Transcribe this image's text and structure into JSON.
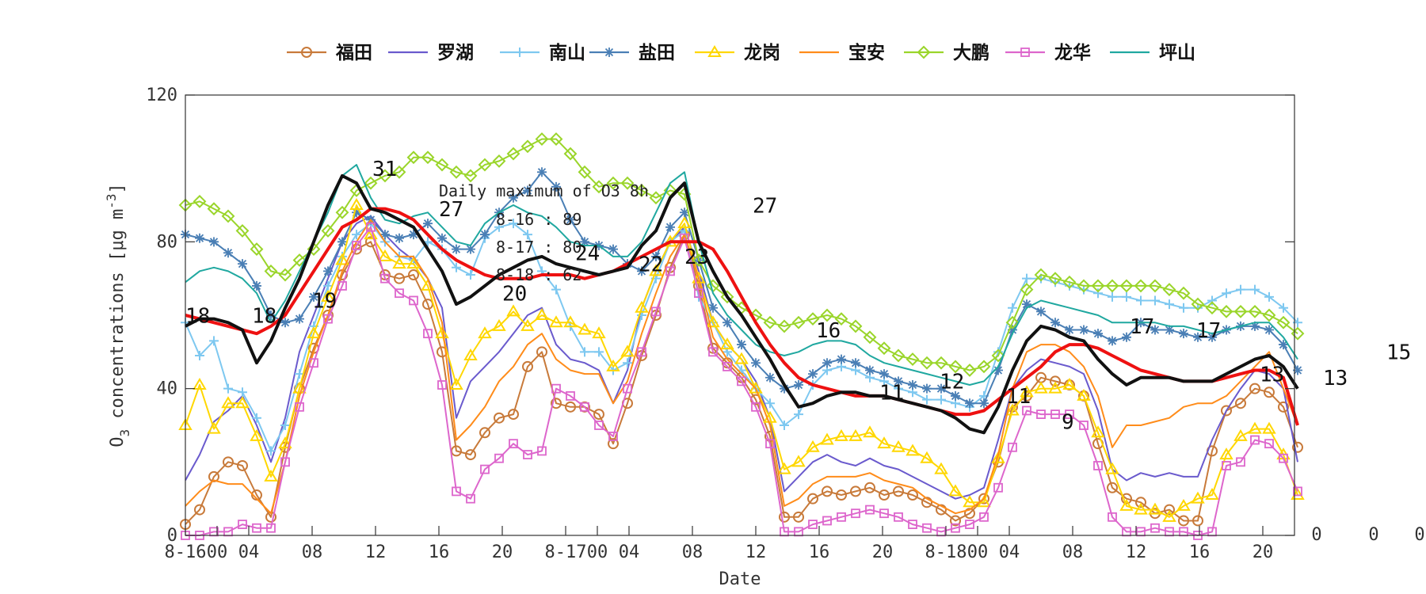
{
  "chart_data": {
    "type": "line",
    "title": "",
    "xlabel": "Date",
    "ylabel": "O3 concentrations [µg m-3]",
    "ylabel_parts": {
      "base": "O",
      "sub": "3",
      "middle": " concentrations [",
      "mu": "μ",
      "unit": "g m",
      "sup": "-3",
      "close": "]"
    },
    "ylim": [
      0,
      120
    ],
    "xlim": [
      0,
      70
    ],
    "yticks": [
      0,
      40,
      80,
      120
    ],
    "xticks": [
      {
        "x": 0,
        "label": "8-16"
      },
      {
        "x": 2,
        "label": "00"
      },
      {
        "x": 4,
        "label": "04"
      },
      {
        "x": 8,
        "label": "08"
      },
      {
        "x": 12,
        "label": "12"
      },
      {
        "x": 16,
        "label": "16"
      },
      {
        "x": 20,
        "label": "20"
      },
      {
        "x": 24,
        "label": "8-17"
      },
      {
        "x": 26,
        "label": "00"
      },
      {
        "x": 28,
        "label": "04"
      },
      {
        "x": 32,
        "label": "08"
      },
      {
        "x": 36,
        "label": "12"
      },
      {
        "x": 40,
        "label": "16"
      },
      {
        "x": 44,
        "label": "20"
      },
      {
        "x": 48,
        "label": "8-18"
      },
      {
        "x": 50,
        "label": "00"
      },
      {
        "x": 52,
        "label": "04"
      },
      {
        "x": 56,
        "label": "08"
      },
      {
        "x": 60,
        "label": "12"
      },
      {
        "x": 64,
        "label": "16"
      },
      {
        "x": 68,
        "label": "20"
      }
    ],
    "right_labels": [
      "0",
      "0",
      "0"
    ],
    "legend": [
      "福田",
      "罗湖",
      "南山",
      "盐田",
      "龙岗",
      "宝安",
      "大鹏",
      "龙华",
      "坪山"
    ],
    "series": [
      {
        "name": "福田",
        "color": "#c87a3a",
        "marker": "circle",
        "values": [
          3,
          7,
          16,
          20,
          19,
          11,
          5,
          24,
          40,
          51,
          60,
          71,
          78,
          80,
          71,
          70,
          71,
          63,
          50,
          23,
          22,
          28,
          32,
          33,
          46,
          50,
          36,
          35,
          35,
          33,
          25,
          36,
          49,
          60,
          73,
          82,
          68,
          51,
          47,
          43,
          37,
          27,
          5,
          5,
          10,
          12,
          11,
          12,
          13,
          11,
          12,
          11,
          9,
          7,
          4,
          6,
          10,
          20,
          35,
          38,
          43,
          42,
          41,
          38,
          25,
          13,
          10,
          9,
          6,
          7,
          4,
          4,
          23,
          34,
          36,
          40,
          39,
          35,
          24
        ]
      },
      {
        "name": "罗湖",
        "color": "#6a5acd",
        "marker": "none",
        "values": [
          15,
          22,
          31,
          34,
          38,
          30,
          20,
          32,
          50,
          60,
          70,
          80,
          85,
          87,
          82,
          78,
          75,
          70,
          62,
          32,
          42,
          46,
          50,
          55,
          60,
          62,
          52,
          48,
          47,
          45,
          36,
          45,
          62,
          72,
          80,
          84,
          72,
          58,
          52,
          48,
          42,
          32,
          12,
          16,
          20,
          22,
          20,
          19,
          21,
          19,
          18,
          16,
          14,
          12,
          10,
          11,
          13,
          26,
          40,
          45,
          48,
          47,
          46,
          44,
          34,
          18,
          15,
          17,
          16,
          17,
          16,
          16,
          26,
          34,
          40,
          45,
          44,
          40,
          20
        ]
      },
      {
        "name": "南山",
        "color": "#7ec8f0",
        "marker": "plus",
        "values": [
          58,
          49,
          53,
          40,
          39,
          32,
          23,
          30,
          44,
          57,
          68,
          76,
          82,
          85,
          80,
          76,
          75,
          80,
          78,
          73,
          71,
          81,
          84,
          85,
          82,
          72,
          67,
          57,
          50,
          50,
          45,
          47,
          60,
          70,
          80,
          83,
          65,
          58,
          50,
          45,
          40,
          36,
          30,
          33,
          41,
          45,
          46,
          45,
          43,
          42,
          40,
          39,
          37,
          37,
          36,
          35,
          38,
          50,
          62,
          70,
          70,
          69,
          68,
          67,
          66,
          65,
          65,
          64,
          64,
          63,
          62,
          62,
          64,
          66,
          67,
          67,
          65,
          62,
          58
        ]
      },
      {
        "name": "盐田",
        "color": "#4a7fb5",
        "marker": "star",
        "values": [
          82,
          81,
          80,
          77,
          74,
          68,
          60,
          58,
          59,
          65,
          72,
          80,
          88,
          86,
          82,
          81,
          82,
          85,
          81,
          78,
          78,
          82,
          88,
          92,
          94,
          99,
          95,
          86,
          80,
          79,
          78,
          74,
          72,
          76,
          84,
          88,
          75,
          62,
          58,
          52,
          47,
          43,
          40,
          41,
          44,
          47,
          48,
          47,
          45,
          44,
          42,
          41,
          40,
          40,
          38,
          36,
          36,
          45,
          56,
          63,
          61,
          58,
          56,
          56,
          55,
          53,
          54,
          58,
          56,
          56,
          55,
          54,
          54,
          56,
          57,
          57,
          56,
          52,
          45
        ]
      },
      {
        "name": "龙岗",
        "color": "#ffd700",
        "marker": "triangle",
        "values": [
          30,
          41,
          29,
          36,
          36,
          27,
          16,
          25,
          40,
          55,
          65,
          75,
          90,
          82,
          76,
          74,
          74,
          68,
          55,
          41,
          49,
          55,
          57,
          61,
          57,
          60,
          58,
          58,
          56,
          55,
          46,
          50,
          62,
          72,
          80,
          85,
          70,
          58,
          52,
          48,
          40,
          32,
          18,
          20,
          24,
          26,
          27,
          27,
          28,
          25,
          24,
          23,
          21,
          18,
          12,
          9,
          9,
          21,
          34,
          39,
          40,
          40,
          41,
          38,
          28,
          18,
          8,
          7,
          7,
          5,
          8,
          10,
          11,
          22,
          27,
          29,
          29,
          22,
          11
        ]
      },
      {
        "name": "宝安",
        "color": "#ff8c1a",
        "marker": "none",
        "values": [
          8,
          12,
          15,
          14,
          14,
          10,
          6,
          20,
          38,
          50,
          60,
          72,
          80,
          86,
          80,
          76,
          76,
          70,
          58,
          26,
          30,
          35,
          42,
          46,
          52,
          55,
          48,
          45,
          44,
          44,
          36,
          42,
          55,
          66,
          76,
          82,
          70,
          54,
          48,
          44,
          40,
          30,
          8,
          10,
          14,
          16,
          16,
          16,
          17,
          15,
          14,
          13,
          10,
          8,
          6,
          7,
          10,
          22,
          40,
          50,
          52,
          52,
          50,
          46,
          38,
          24,
          30,
          30,
          31,
          32,
          35,
          36,
          36,
          38,
          42,
          46,
          50,
          40,
          30
        ]
      },
      {
        "name": "大鹏",
        "color": "#9ad52a",
        "marker": "diamond",
        "values": [
          90,
          91,
          89,
          87,
          83,
          78,
          72,
          71,
          75,
          78,
          83,
          88,
          94,
          96,
          98,
          99,
          103,
          103,
          101,
          99,
          98,
          101,
          102,
          104,
          106,
          108,
          108,
          104,
          99,
          95,
          96,
          96,
          94,
          92,
          94,
          93,
          75,
          68,
          65,
          62,
          60,
          58,
          57,
          58,
          59,
          60,
          59,
          57,
          54,
          51,
          49,
          48,
          47,
          47,
          46,
          45,
          46,
          49,
          58,
          67,
          71,
          70,
          69,
          68,
          68,
          68,
          68,
          68,
          68,
          67,
          66,
          63,
          62,
          61,
          61,
          61,
          60,
          58,
          55
        ]
      },
      {
        "name": "龙华",
        "color": "#dd66cc",
        "marker": "square",
        "values": [
          0,
          0,
          1,
          1,
          3,
          2,
          2,
          20,
          35,
          47,
          59,
          68,
          79,
          84,
          70,
          66,
          64,
          55,
          41,
          12,
          10,
          18,
          21,
          25,
          22,
          23,
          40,
          38,
          35,
          30,
          27,
          40,
          50,
          61,
          72,
          81,
          66,
          50,
          46,
          42,
          35,
          25,
          1,
          1,
          3,
          4,
          5,
          6,
          7,
          6,
          5,
          3,
          2,
          1,
          2,
          3,
          5,
          13,
          24,
          34,
          33,
          33,
          33,
          30,
          19,
          5,
          1,
          1,
          2,
          1,
          1,
          0,
          1,
          19,
          20,
          26,
          25,
          21,
          12
        ]
      },
      {
        "name": "坪山",
        "color": "#20a8a0",
        "marker": "none",
        "values": [
          69,
          72,
          73,
          72,
          70,
          66,
          58,
          64,
          72,
          80,
          88,
          98,
          101,
          92,
          86,
          85,
          87,
          88,
          84,
          80,
          79,
          85,
          88,
          90,
          88,
          87,
          84,
          80,
          79,
          79,
          76,
          76,
          80,
          88,
          96,
          99,
          80,
          66,
          60,
          56,
          52,
          50,
          49,
          50,
          52,
          53,
          53,
          52,
          49,
          47,
          46,
          45,
          44,
          43,
          42,
          41,
          42,
          46,
          55,
          62,
          64,
          63,
          62,
          61,
          60,
          58,
          58,
          58,
          58,
          57,
          57,
          56,
          55,
          56,
          57,
          58,
          58,
          54,
          48
        ]
      }
    ],
    "mean_line": {
      "name": "mean",
      "color": "#111111",
      "values": [
        57,
        59,
        59,
        58,
        56,
        47,
        53,
        62,
        70,
        80,
        90,
        98,
        96,
        89,
        88,
        86,
        84,
        78,
        72,
        63,
        65,
        68,
        71,
        73,
        75,
        76,
        74,
        73,
        72,
        71,
        72,
        73,
        79,
        83,
        92,
        96,
        80,
        72,
        65,
        60,
        54,
        48,
        41,
        35,
        36,
        38,
        39,
        39,
        38,
        38,
        37,
        36,
        35,
        34,
        32,
        29,
        28,
        35,
        45,
        53,
        57,
        56,
        54,
        53,
        48,
        44,
        41,
        43,
        43,
        43,
        42,
        42,
        42,
        44,
        46,
        48,
        49,
        46,
        40
      ]
    },
    "smooth_line": {
      "name": "smooth",
      "color": "#ee1111",
      "values": [
        60,
        59,
        58,
        57,
        56,
        55,
        57,
        60,
        66,
        72,
        78,
        84,
        86,
        89,
        89,
        88,
        86,
        82,
        78,
        75,
        73,
        71,
        70,
        70,
        70,
        71,
        71,
        71,
        70,
        71,
        72,
        74,
        76,
        78,
        80,
        80,
        80,
        78,
        72,
        65,
        58,
        52,
        47,
        43,
        41,
        40,
        39,
        38,
        38,
        38,
        37,
        36,
        35,
        34,
        33,
        33,
        34,
        37,
        40,
        43,
        46,
        50,
        52,
        52,
        51,
        49,
        47,
        45,
        44,
        43,
        42,
        42,
        42,
        43,
        44,
        45,
        45,
        43,
        30
      ]
    },
    "daily_labels": [
      {
        "x": 0,
        "y": 58,
        "text": "18"
      },
      {
        "x": 4.2,
        "y": 58,
        "text": "18"
      },
      {
        "x": 8,
        "y": 62,
        "text": "19"
      },
      {
        "x": 11.8,
        "y": 98,
        "text": "31"
      },
      {
        "x": 16,
        "y": 87,
        "text": "27"
      },
      {
        "x": 20,
        "y": 64,
        "text": "20"
      },
      {
        "x": 24.6,
        "y": 75,
        "text": "24"
      },
      {
        "x": 28.6,
        "y": 72,
        "text": "22"
      },
      {
        "x": 31.5,
        "y": 74,
        "text": "23"
      },
      {
        "x": 35.8,
        "y": 88,
        "text": "27"
      },
      {
        "x": 39.8,
        "y": 54,
        "text": "16"
      },
      {
        "x": 43.8,
        "y": 37,
        "text": "11"
      },
      {
        "x": 47.6,
        "y": 40,
        "text": "12"
      },
      {
        "x": 51.8,
        "y": 36,
        "text": "11"
      },
      {
        "x": 55.3,
        "y": 29,
        "text": "9"
      },
      {
        "x": 59.6,
        "y": 55,
        "text": "17"
      },
      {
        "x": 63.8,
        "y": 54,
        "text": "17"
      },
      {
        "x": 67.8,
        "y": 42,
        "text": "13"
      },
      {
        "x": 71.8,
        "y": 41,
        "text": "13"
      },
      {
        "x": 75.8,
        "y": 48,
        "text": "15"
      }
    ],
    "annotation_box": {
      "title": "Daily maximum of O3 8h",
      "lines": [
        "8-16 : 89",
        "8-17 : 80",
        "8-18 : 62"
      ]
    }
  }
}
